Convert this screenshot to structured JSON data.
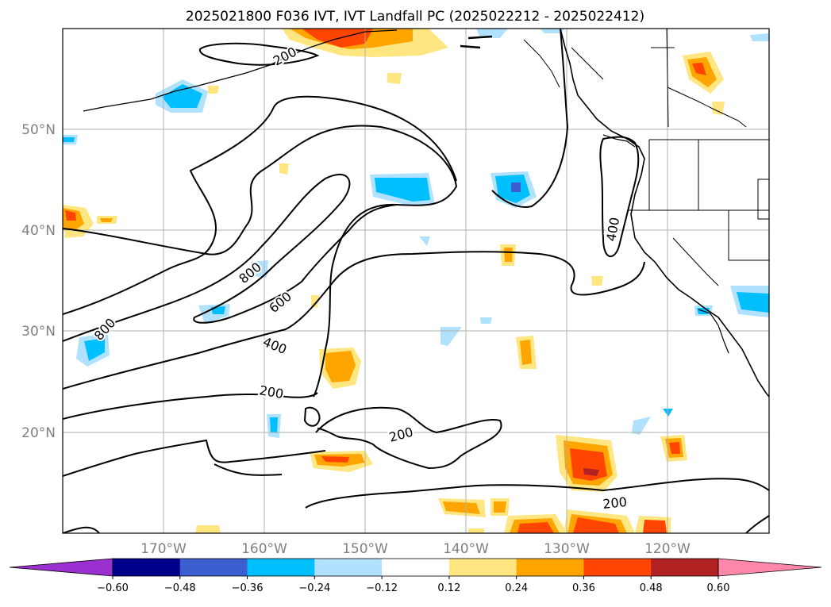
{
  "title": "2025021800 F036 IVT, IVT Landfall PC (2025022212 - 2025022412)",
  "lat_labels": [
    "50°N",
    "40°N",
    "30°N",
    "20°N"
  ],
  "lon_labels": [
    "170°W",
    "160°W",
    "150°W",
    "140°W",
    "130°W",
    "120°W"
  ],
  "colorbar": {
    "tick_labels": [
      "−0.60",
      "−0.48",
      "−0.36",
      "−0.24",
      "−0.12",
      "0.12",
      "0.24",
      "0.36",
      "0.48",
      "0.60"
    ],
    "colors": [
      "#9b30d0",
      "#00008b",
      "#3b5fcf",
      "#00bfff",
      "#b0e2ff",
      "#ffffff",
      "#ffe680",
      "#ffa500",
      "#ff4500",
      "#b22222",
      "#ff88aa"
    ]
  },
  "contour_labels": [
    "200",
    "400",
    "600",
    "800",
    "800",
    "400",
    "200",
    "200",
    "200"
  ],
  "colors": {
    "land_line": "#000000",
    "grid": "#b0b0b0",
    "contour": "#000000"
  }
}
